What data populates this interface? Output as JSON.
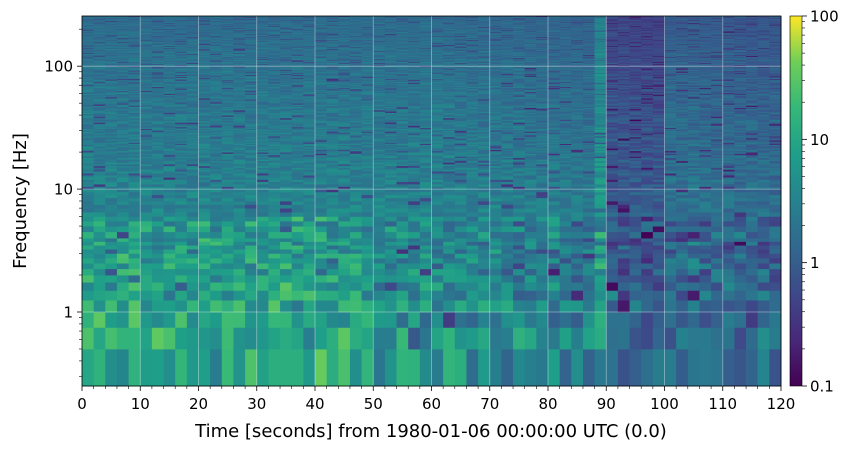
{
  "chart_data": {
    "type": "heatmap",
    "xlabel": "Time [seconds] from 1980-01-06 00:00:00 UTC (0.0)",
    "ylabel": "Frequency [Hz]",
    "xlim": [
      0,
      120
    ],
    "ylim": [
      0.25,
      256
    ],
    "yscale": "log",
    "x_ticks": [
      "0",
      "10",
      "20",
      "30",
      "40",
      "50",
      "60",
      "70",
      "80",
      "90",
      "100",
      "110",
      "120"
    ],
    "y_ticks": [
      "1",
      "10",
      "100"
    ],
    "colorbar": {
      "scale": "log",
      "range": [
        0.1,
        100
      ],
      "ticks": [
        "0.1",
        "1",
        "10",
        "100"
      ],
      "colormap": "viridis"
    },
    "grid": true,
    "colors": {
      "low": "#440154",
      "mid": "#21918c",
      "high": "#fde725",
      "grid": "#ffffff"
    }
  }
}
